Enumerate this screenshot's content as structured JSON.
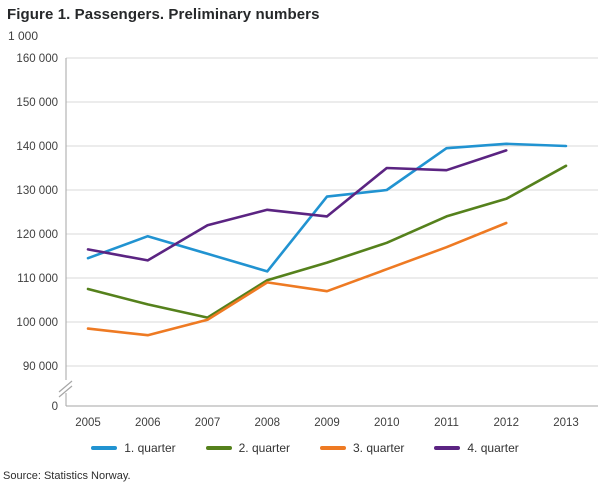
{
  "figure": {
    "title": "Figure 1. Passengers. Preliminary numbers",
    "source": "Source: Statistics Norway."
  },
  "chart_data": {
    "type": "line",
    "title": "Figure 1. Passengers. Preliminary numbers",
    "unit_label": "1 000",
    "xlabel": "",
    "ylabel": "1 000",
    "x": [
      "2005",
      "2006",
      "2007",
      "2008",
      "2009",
      "2010",
      "2011",
      "2012",
      "2013"
    ],
    "ylim": [
      90000,
      160000
    ],
    "axis_break_at_zero": true,
    "grid": "horizontal",
    "legend_position": "bottom",
    "yticks": [
      {
        "label": "160 000",
        "value": 160000
      },
      {
        "label": "150 000",
        "value": 150000
      },
      {
        "label": "140 000",
        "value": 140000
      },
      {
        "label": "130 000",
        "value": 130000
      },
      {
        "label": "120 000",
        "value": 120000
      },
      {
        "label": "110 000",
        "value": 110000
      },
      {
        "label": "100 000",
        "value": 100000
      },
      {
        "label": "90 000",
        "value": 90000
      },
      {
        "label": "0",
        "value": 0
      }
    ],
    "series": [
      {
        "name": "1. quarter",
        "color": "#2193d1",
        "values": [
          114500,
          119500,
          115500,
          111500,
          128500,
          130000,
          139500,
          140500,
          140000
        ]
      },
      {
        "name": "2. quarter",
        "color": "#55811c",
        "values": [
          107500,
          104000,
          101000,
          109500,
          113500,
          118000,
          124000,
          128000,
          135500
        ]
      },
      {
        "name": "3. quarter",
        "color": "#ee7a23",
        "values": [
          98500,
          97000,
          100500,
          109000,
          107000,
          112000,
          117000,
          122500,
          null
        ]
      },
      {
        "name": "4. quarter",
        "color": "#5b2482",
        "values": [
          116500,
          114000,
          122000,
          125500,
          124000,
          135000,
          134500,
          139000,
          null
        ]
      }
    ]
  }
}
